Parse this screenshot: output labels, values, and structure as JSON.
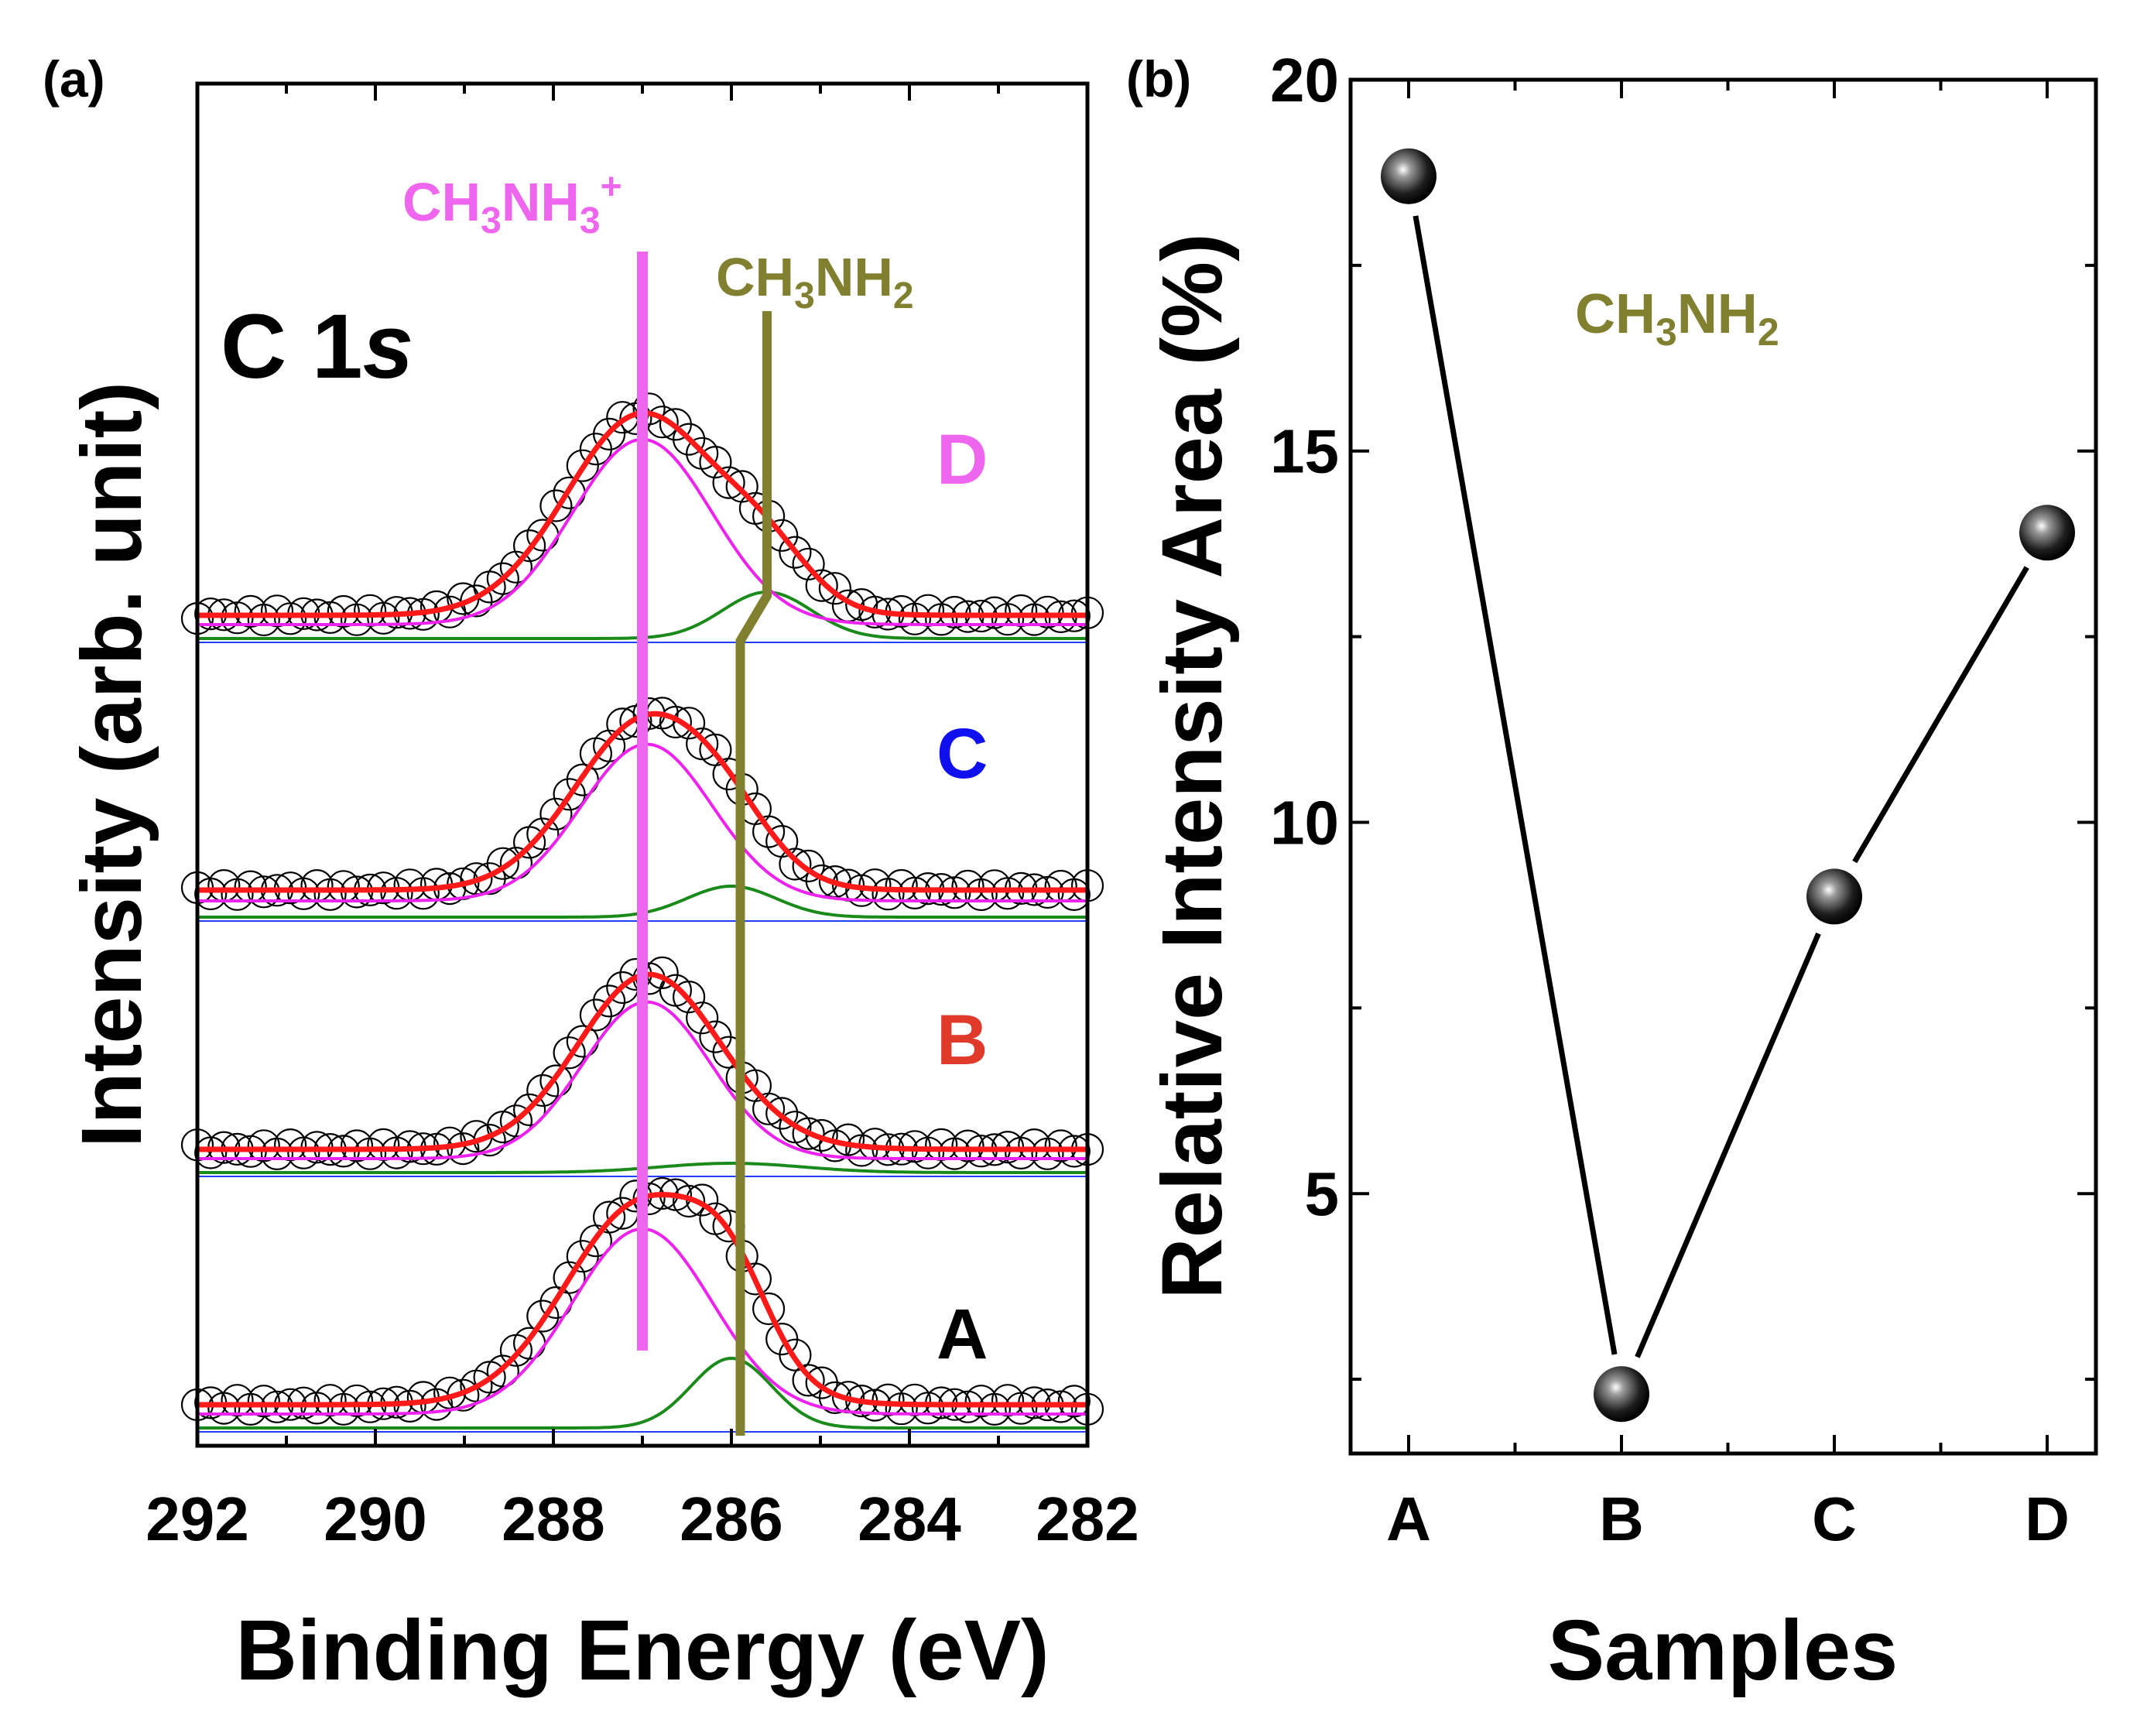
{
  "colors": {
    "axis": "#000000",
    "fit": "#ff1a1a",
    "component_ch3nh3": "#ee22ee",
    "component_ch3nh2": "#1a8a1a",
    "baseline": "#2040ff",
    "marker_ch3nh3": "#ee66ee",
    "marker_ch3nh2": "#808030",
    "label_A": "#000000",
    "label_B": "#e03a2a",
    "label_C": "#1010ee",
    "label_D": "#ee66ee",
    "series_b": "#000000"
  },
  "chart_data": [
    {
      "panel": "(a)",
      "type": "line",
      "title": "C 1s",
      "title_main": "C 1",
      "title_italic": "s",
      "xlabel": "Binding Energy (eV)",
      "ylabel": "Intensity (arb. unit)",
      "xlim": [
        292,
        282
      ],
      "x_ticks": [
        292,
        290,
        288,
        286,
        284,
        282
      ],
      "x_tick_labels": [
        "292",
        "290",
        "288",
        "286",
        "284",
        "282"
      ],
      "ch3nh3_marker": {
        "label": "CH3NH3+",
        "label_base": "CH",
        "label_sub1": "3",
        "label_mid": "NH",
        "label_sub2": "3",
        "label_sup": "+",
        "energy": 287.0
      },
      "ch3nh2_marker": {
        "label": "CH3NH2",
        "label_base": "CH",
        "label_sub1": "3",
        "label_mid": "NH",
        "label_sub2": "2",
        "energy_upper": 285.6,
        "energy_lower": 285.9
      },
      "samples": [
        {
          "name": "A",
          "offset": 0.0,
          "main_center": 287.0,
          "main_amp": 2.6,
          "main_width": 0.85,
          "sec_center": 286.0,
          "sec_amp": 0.9,
          "sec_width": 0.45,
          "background": 0.3
        },
        {
          "name": "B",
          "offset": 3.3,
          "main_center": 286.95,
          "main_amp": 2.2,
          "main_width": 0.78,
          "sec_center": 286.0,
          "sec_amp": 0.12,
          "sec_width": 0.8,
          "background": 0.3
        },
        {
          "name": "C",
          "offset": 6.6,
          "main_center": 286.95,
          "main_amp": 2.2,
          "main_width": 0.8,
          "sec_center": 286.0,
          "sec_amp": 0.4,
          "sec_width": 0.5,
          "background": 0.35
        },
        {
          "name": "D",
          "offset": 10.2,
          "main_center": 287.0,
          "main_amp": 2.6,
          "main_width": 0.85,
          "sec_center": 285.6,
          "sec_amp": 0.6,
          "sec_width": 0.5,
          "background": 0.3
        }
      ]
    },
    {
      "panel": "(b)",
      "type": "line",
      "xlabel": "Samples",
      "ylabel": "Relative Intensity Area (%)",
      "annotation": "CH3NH2",
      "annotation_base": "CH",
      "annotation_sub1": "3",
      "annotation_mid": "NH",
      "annotation_sub2": "2",
      "categories": [
        "A",
        "B",
        "C",
        "D"
      ],
      "values": [
        18.7,
        2.3,
        9.0,
        13.9
      ],
      "ylim": [
        1.5,
        20
      ],
      "y_ticks": [
        5,
        10,
        15,
        20
      ],
      "y_tick_labels": [
        "5",
        "10",
        "15",
        "20"
      ]
    }
  ]
}
